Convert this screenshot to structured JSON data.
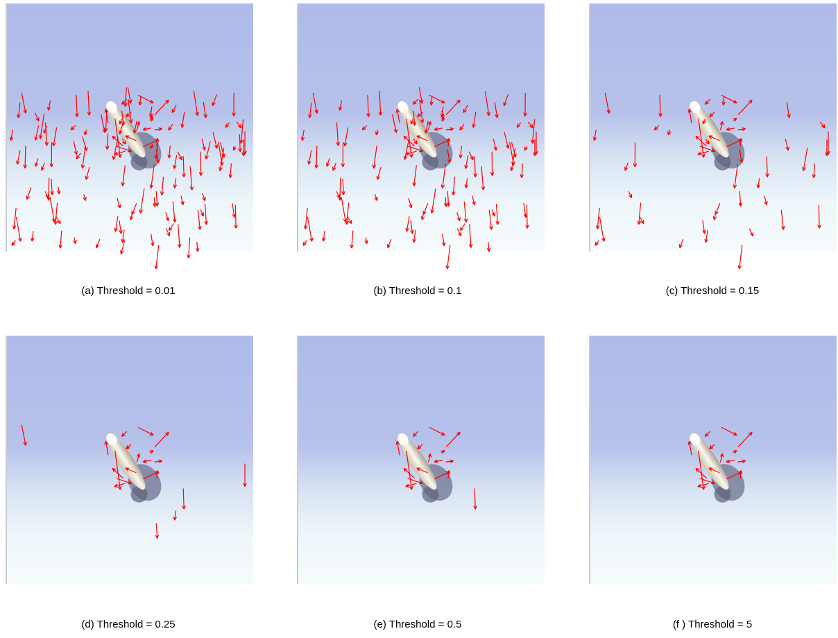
{
  "panels": [
    {
      "caption": "(a) Threshold = 0.01"
    },
    {
      "caption": "(b) Threshold = 0.1"
    },
    {
      "caption": "(c) Threshold = 0.15"
    },
    {
      "caption": "(d) Threshold = 0.25"
    },
    {
      "caption": "(e) Threshold = 0.5"
    },
    {
      "caption": "(f ) Threshold = 5"
    }
  ]
}
